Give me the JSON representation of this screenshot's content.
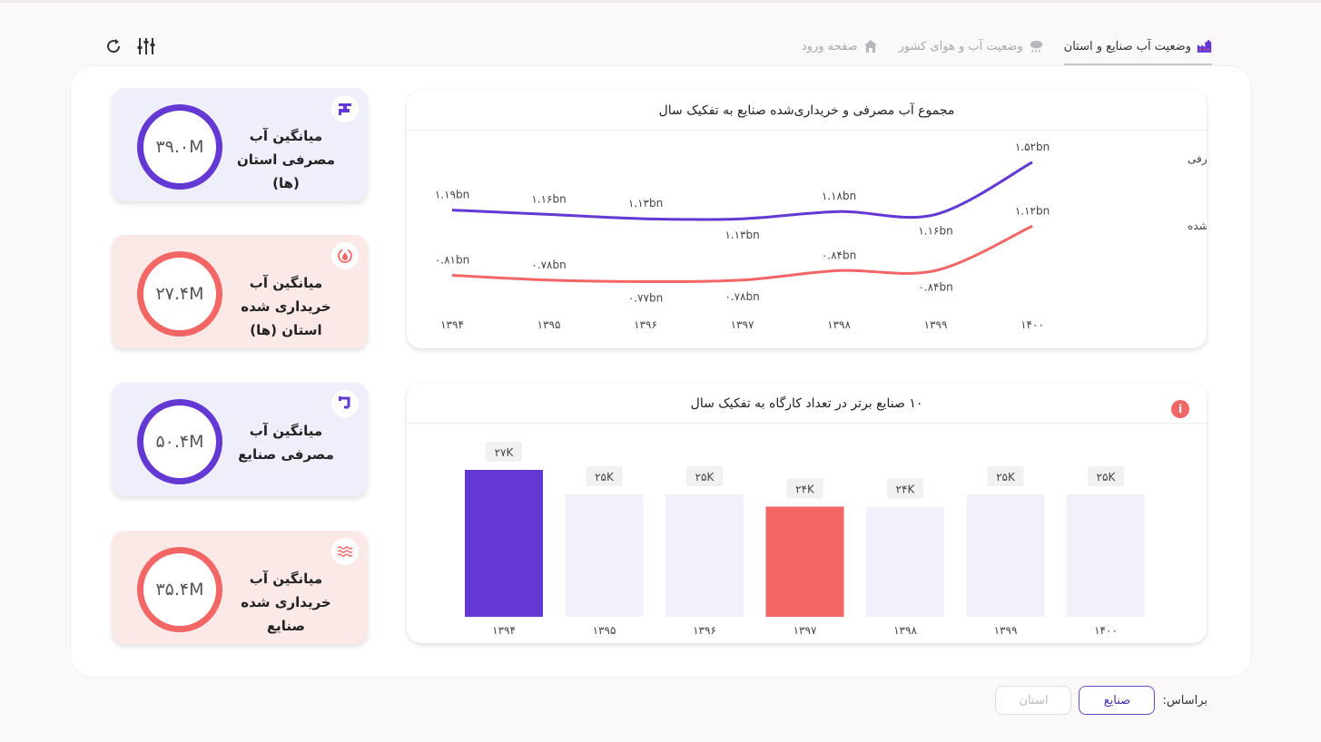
{
  "tabs": [
    {
      "label": "صفحه ورود",
      "icon": "home-icon",
      "active": false
    },
    {
      "label": "وضعیت آب و هوای کشور",
      "icon": "cloud-rain-icon",
      "active": false
    },
    {
      "label": "وضعیت آب صنایع و استان",
      "icon": "factory-icon",
      "active": true
    }
  ],
  "toolbar": {
    "refresh_icon": "refresh-icon",
    "filters_icon": "sliders-icon"
  },
  "stats": [
    {
      "value": "۳۹.۰M",
      "title": "میانگین آب مصرفی استان (ها)",
      "icon": "faucet-icon",
      "color": "purple"
    },
    {
      "value": "۲۷.۴M",
      "title": "میانگین آب خریداری شده استان (ها)",
      "icon": "water-cycle-icon",
      "color": "red"
    },
    {
      "value": "۵۰.۴M",
      "title": "میانگین آب مصرفی صنایع",
      "icon": "pipe-icon",
      "color": "purple"
    },
    {
      "value": "۳۵.۴M",
      "title": "میانگین آب خریداری شده صنایع",
      "icon": "waves-icon",
      "color": "red"
    }
  ],
  "colors": {
    "purple": "#6438d3",
    "red": "#f26766",
    "light_bar": "#f1f1fb"
  },
  "chart_data": [
    {
      "type": "line",
      "title": "مجموع آب مصرفی و خریداری‌شده صنایع به تفکیک سال",
      "x": [
        "۱۳۹۴",
        "۱۳۹۵",
        "۱۳۹۶",
        "۱۳۹۷",
        "۱۳۹۸",
        "۱۳۹۹",
        "۱۴۰۰"
      ],
      "series": [
        {
          "name": "مجموع آب مصرفی",
          "values": [
            1.19,
            1.16,
            1.13,
            1.13,
            1.18,
            1.16,
            1.52
          ],
          "labels": [
            "۱.۱۹bn",
            "۱.۱۶bn",
            "۱.۱۳bn",
            "۱.۱۳bn",
            "۱.۱۸bn",
            "۱.۱۶bn",
            "۱.۵۲bn"
          ],
          "color": "#6438d3"
        },
        {
          "name": "مجموع آب خریداری‌شده",
          "values": [
            0.81,
            0.78,
            0.77,
            0.78,
            0.84,
            0.84,
            1.12
          ],
          "labels": [
            "۰.۸۱bn",
            "۰.۷۸bn",
            "۰.۷۷bn",
            "۰.۷۸bn",
            "۰.۸۴bn",
            "۰.۸۴bn",
            "۱.۱۲bn"
          ],
          "color": "#f26766"
        }
      ],
      "legend": "right"
    },
    {
      "type": "bar",
      "title": "۱۰ صنایع برتر در تعداد کارگاه به تفکیک سال",
      "categories": [
        "۱۳۹۴",
        "۱۳۹۵",
        "۱۳۹۶",
        "۱۳۹۷",
        "۱۳۹۸",
        "۱۳۹۹",
        "۱۴۰۰"
      ],
      "values": [
        27,
        25,
        25,
        24,
        24,
        25,
        25
      ],
      "labels": [
        "۲۷K",
        "۲۵K",
        "۲۵K",
        "۲۴K",
        "۲۴K",
        "۲۵K",
        "۲۵K"
      ],
      "highlight": {
        "0": "#6438d3",
        "3": "#f26766"
      }
    }
  ],
  "filter": {
    "label": "براساس:",
    "options": [
      "صنایع",
      "استان"
    ],
    "selected": "صنایع"
  }
}
